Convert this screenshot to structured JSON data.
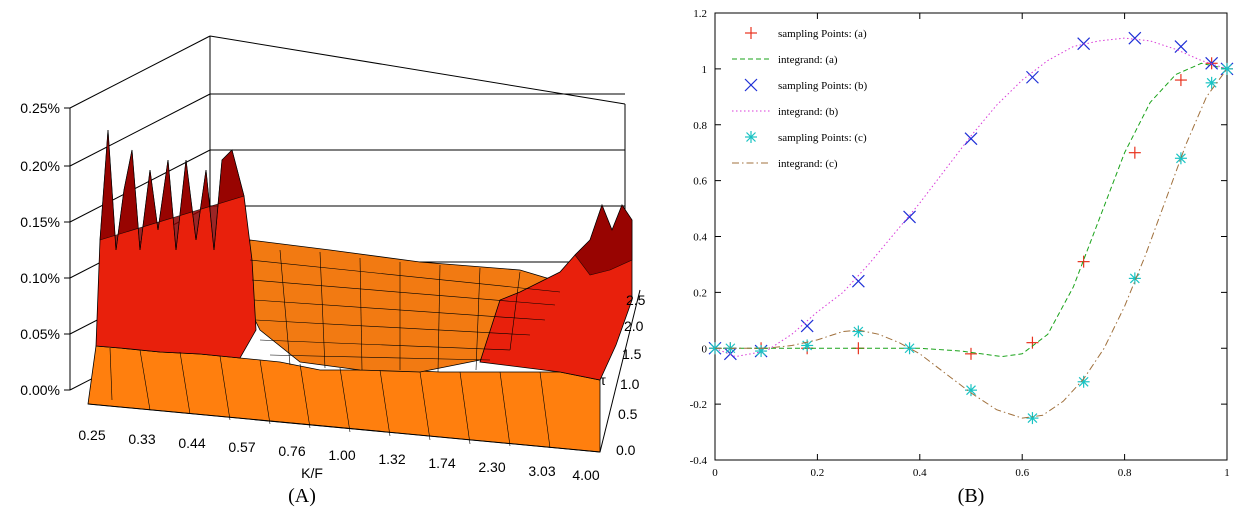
{
  "chart_data": [
    {
      "type": "surface",
      "panel_label": "(A)",
      "xlabel": "K/F",
      "ylabel": "τ",
      "x_ticks": [
        "0.25",
        "0.33",
        "0.44",
        "0.57",
        "0.76",
        "1.00",
        "1.32",
        "1.74",
        "2.30",
        "3.03",
        "4.00"
      ],
      "y_ticks": [
        "0.0",
        "0.5",
        "1.0",
        "1.5",
        "2.0",
        "2.5"
      ],
      "z_ticks": [
        "0.00%",
        "0.05%",
        "0.10%",
        "0.15%",
        "0.20%",
        "0.25%"
      ],
      "zlim": [
        0,
        0.25
      ],
      "colors": {
        "low": "#ff7f0e",
        "mid": "#e8200c",
        "high": "#8b0000",
        "mesh": "#000000"
      }
    },
    {
      "type": "line",
      "panel_label": "(B)",
      "xlim": [
        0,
        1
      ],
      "ylim": [
        -0.4,
        1.2
      ],
      "x_ticks": [
        0,
        0.2,
        0.4,
        0.6,
        0.8,
        1
      ],
      "y_ticks": [
        -0.4,
        -0.2,
        0,
        0.2,
        0.4,
        0.6,
        0.8,
        1,
        1.2
      ],
      "legend_position": "top-left",
      "series": [
        {
          "name": "sampling Points: (a)",
          "kind": "points",
          "marker": "plus",
          "color": "#e8321e",
          "x": [
            0,
            0.03,
            0.09,
            0.18,
            0.28,
            0.5,
            0.62,
            0.72,
            0.82,
            0.91,
            0.97,
            1.0
          ],
          "y": [
            0,
            0,
            0,
            0,
            0,
            -0.02,
            0.02,
            0.31,
            0.7,
            0.96,
            1.02,
            1.0
          ]
        },
        {
          "name": "integrand: (a)",
          "kind": "line",
          "dash": "dashed",
          "color": "#1aa31a",
          "x": [
            0,
            0.1,
            0.2,
            0.3,
            0.4,
            0.48,
            0.52,
            0.56,
            0.6,
            0.65,
            0.7,
            0.75,
            0.8,
            0.85,
            0.9,
            0.95,
            1.0
          ],
          "y": [
            0,
            0,
            0,
            0,
            0,
            -0.01,
            -0.02,
            -0.03,
            -0.02,
            0.05,
            0.22,
            0.46,
            0.7,
            0.88,
            0.98,
            1.02,
            1.0
          ]
        },
        {
          "name": "sampling Points: (b)",
          "kind": "points",
          "marker": "cross",
          "color": "#1e2fd6",
          "x": [
            0,
            0.03,
            0.09,
            0.18,
            0.28,
            0.38,
            0.5,
            0.62,
            0.72,
            0.82,
            0.91,
            0.97,
            1.0
          ],
          "y": [
            0,
            -0.02,
            -0.01,
            0.08,
            0.24,
            0.47,
            0.75,
            0.97,
            1.09,
            1.11,
            1.08,
            1.02,
            1.0
          ]
        },
        {
          "name": "integrand: (b)",
          "kind": "line",
          "dash": "dotted",
          "color": "#d93bd9",
          "x": [
            0,
            0.04,
            0.1,
            0.15,
            0.2,
            0.25,
            0.3,
            0.35,
            0.4,
            0.45,
            0.5,
            0.55,
            0.6,
            0.65,
            0.7,
            0.75,
            0.8,
            0.85,
            0.9,
            0.95,
            1.0
          ],
          "y": [
            0,
            -0.03,
            -0.01,
            0.05,
            0.13,
            0.2,
            0.3,
            0.41,
            0.52,
            0.64,
            0.76,
            0.87,
            0.96,
            1.03,
            1.08,
            1.1,
            1.11,
            1.1,
            1.07,
            1.03,
            1.0
          ]
        },
        {
          "name": "sampling Points: (c)",
          "kind": "points",
          "marker": "star",
          "color": "#19c3c3",
          "x": [
            0,
            0.03,
            0.09,
            0.18,
            0.28,
            0.38,
            0.5,
            0.62,
            0.72,
            0.82,
            0.91,
            0.97,
            1.0
          ],
          "y": [
            0,
            0,
            -0.01,
            0.01,
            0.06,
            0,
            -0.15,
            -0.25,
            -0.12,
            0.25,
            0.68,
            0.95,
            1.0
          ]
        },
        {
          "name": "integrand: (c)",
          "kind": "line",
          "dash": "dashdot",
          "color": "#a0703c",
          "x": [
            0,
            0.05,
            0.1,
            0.15,
            0.2,
            0.25,
            0.28,
            0.32,
            0.36,
            0.4,
            0.45,
            0.5,
            0.55,
            0.6,
            0.64,
            0.68,
            0.72,
            0.76,
            0.8,
            0.84,
            0.88,
            0.92,
            0.96,
            1.0
          ],
          "y": [
            0,
            0,
            0,
            0.01,
            0.03,
            0.06,
            0.065,
            0.05,
            0.02,
            -0.02,
            -0.09,
            -0.16,
            -0.22,
            -0.25,
            -0.24,
            -0.19,
            -0.11,
            0.0,
            0.15,
            0.33,
            0.53,
            0.73,
            0.9,
            1.0
          ]
        }
      ]
    }
  ]
}
